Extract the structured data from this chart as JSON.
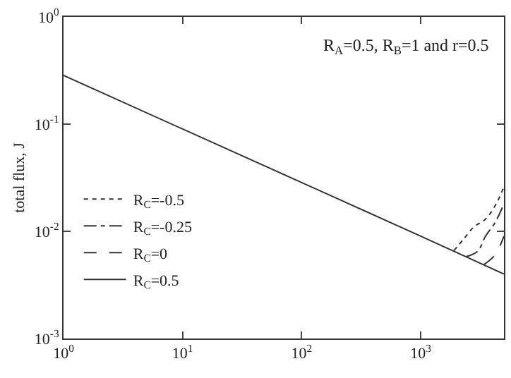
{
  "chart_data": {
    "type": "line",
    "ylabel": "total flux, J",
    "annotations": [
      "R$_{A}$=0.5, R$_{B}$=1 and r=0.5"
    ],
    "log": "xy",
    "xlim": [
      1,
      5000
    ],
    "ylim": [
      0.001,
      1
    ],
    "xticks": [
      {
        "value": 1,
        "label": "10$^{0}$"
      },
      {
        "value": 10,
        "label": "10$^{1}$"
      },
      {
        "value": 100,
        "label": "10$^{2}$"
      },
      {
        "value": 1000,
        "label": "10$^{3}$"
      }
    ],
    "yticks": [
      {
        "value": 0.001,
        "label": "10$^{-3}$"
      },
      {
        "value": 0.01,
        "label": "10$^{-2}$"
      },
      {
        "value": 0.1,
        "label": "10$^{-1}$"
      },
      {
        "value": 1,
        "label": "10$^{0}$"
      }
    ],
    "legend": "bottom left",
    "marker": "none",
    "series": [
      {
        "name": "R$_{C}$=-0.5",
        "color": "#333333",
        "line_style": "dotted",
        "x": [
          1900,
          2300,
          2800,
          3500,
          4300,
          5000
        ],
        "values": [
          0.0066,
          0.0085,
          0.011,
          0.013,
          0.018,
          0.026
        ]
      },
      {
        "name": "R$_{C}$=-0.25",
        "color": "#333333",
        "line_style": "dashdot",
        "x": [
          2400,
          3000,
          3500,
          4200,
          5000
        ],
        "values": [
          0.0058,
          0.0065,
          0.009,
          0.012,
          0.018
        ]
      },
      {
        "name": "R$_{C}$=0",
        "color": "#333333",
        "line_style": "dashed",
        "x": [
          3400,
          4200,
          5000
        ],
        "values": [
          0.0049,
          0.006,
          0.009
        ]
      },
      {
        "name": "R$_{C}$=0.5",
        "color": "#333333",
        "line_style": "solid",
        "x": [
          1,
          10,
          100,
          1000,
          5000
        ],
        "values": [
          0.285,
          0.09,
          0.0285,
          0.009,
          0.004
        ]
      }
    ]
  }
}
